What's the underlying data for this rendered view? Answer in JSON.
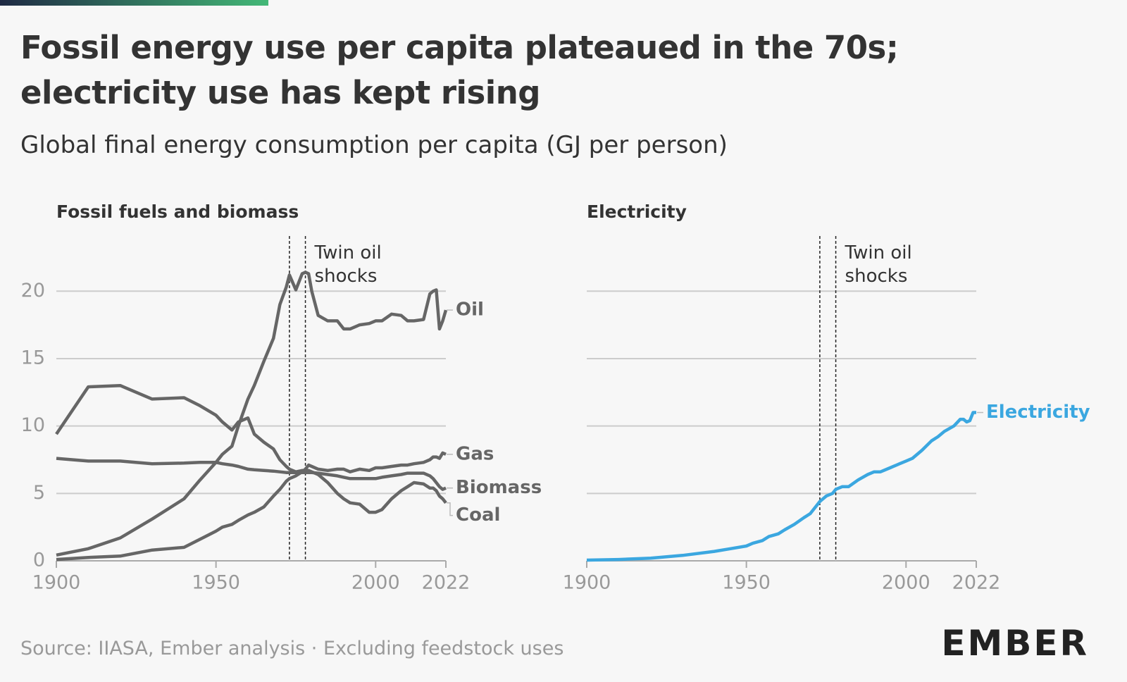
{
  "title": "Fossil energy use per capita plateaued in the 70s; electricity use has kept rising",
  "subtitle": "Global final energy consumption per capita (GJ per person)",
  "source": "Source: IIASA, Ember analysis · Excluding feedstock uses",
  "logo": "EMBER",
  "chart_data": [
    {
      "type": "line",
      "title": "Fossil fuels and biomass",
      "x": [
        1900,
        1910,
        1920,
        1930,
        1940,
        1945,
        1950,
        1952,
        1955,
        1957,
        1960,
        1962,
        1965,
        1968,
        1970,
        1972,
        1973,
        1975,
        1977,
        1978,
        1979,
        1980,
        1982,
        1985,
        1988,
        1990,
        1992,
        1995,
        1998,
        2000,
        2002,
        2005,
        2008,
        2010,
        2012,
        2015,
        2017,
        2018,
        2019,
        2020,
        2021,
        2022
      ],
      "xlim": [
        1900,
        2022
      ],
      "xticks": [
        1900,
        1950,
        2000,
        2022
      ],
      "ylim": [
        0,
        22
      ],
      "yticks": [
        0,
        5,
        10,
        15,
        20
      ],
      "grid": true,
      "annotation": {
        "text": "Twin oil shocks",
        "x": [
          1973,
          1978
        ]
      },
      "series": [
        {
          "name": "Oil",
          "color": "#666666",
          "values": [
            0.43,
            0.9,
            1.7,
            3.1,
            4.6,
            6.0,
            7.3,
            7.9,
            8.5,
            10.0,
            12.0,
            13.0,
            14.8,
            16.5,
            19.0,
            20.3,
            21.2,
            20.1,
            21.3,
            21.4,
            21.3,
            20.0,
            18.2,
            17.8,
            17.8,
            17.2,
            17.2,
            17.5,
            17.6,
            17.8,
            17.8,
            18.3,
            18.2,
            17.8,
            17.8,
            17.9,
            19.8,
            20.0,
            20.1,
            17.2,
            17.8,
            18.6
          ]
        },
        {
          "name": "Gas",
          "color": "#666666",
          "values": [
            0.1,
            0.25,
            0.35,
            0.8,
            1.0,
            1.6,
            2.2,
            2.5,
            2.7,
            3.0,
            3.4,
            3.6,
            4.0,
            4.8,
            5.3,
            5.9,
            6.1,
            6.3,
            6.6,
            6.8,
            7.1,
            7.0,
            6.8,
            6.7,
            6.8,
            6.8,
            6.6,
            6.8,
            6.7,
            6.9,
            6.9,
            7.0,
            7.1,
            7.1,
            7.2,
            7.3,
            7.5,
            7.7,
            7.7,
            7.6,
            8.0,
            7.9
          ]
        },
        {
          "name": "Biomass",
          "color": "#666666",
          "values": [
            7.6,
            7.4,
            7.4,
            7.2,
            7.25,
            7.3,
            7.3,
            7.2,
            7.1,
            7.0,
            6.8,
            6.75,
            6.7,
            6.65,
            6.6,
            6.55,
            6.55,
            6.55,
            6.55,
            6.55,
            6.55,
            6.55,
            6.5,
            6.4,
            6.3,
            6.2,
            6.1,
            6.1,
            6.1,
            6.1,
            6.2,
            6.3,
            6.4,
            6.5,
            6.5,
            6.5,
            6.3,
            6.1,
            5.8,
            5.5,
            5.3,
            5.4
          ]
        },
        {
          "name": "Coal",
          "color": "#666666",
          "values": [
            9.4,
            12.9,
            13.0,
            12.0,
            12.1,
            11.5,
            10.8,
            10.3,
            9.7,
            10.3,
            10.6,
            9.4,
            8.8,
            8.3,
            7.5,
            7.0,
            6.8,
            6.6,
            6.7,
            6.7,
            6.7,
            6.6,
            6.4,
            5.8,
            5.0,
            4.6,
            4.3,
            4.2,
            3.6,
            3.6,
            3.8,
            4.6,
            5.2,
            5.5,
            5.8,
            5.7,
            5.4,
            5.4,
            5.2,
            4.8,
            4.6,
            4.3
          ]
        }
      ]
    },
    {
      "type": "line",
      "title": "Electricity",
      "x": [
        1900,
        1910,
        1920,
        1930,
        1940,
        1945,
        1950,
        1952,
        1955,
        1957,
        1960,
        1962,
        1965,
        1968,
        1970,
        1972,
        1973,
        1975,
        1977,
        1978,
        1979,
        1980,
        1982,
        1985,
        1988,
        1990,
        1992,
        1995,
        1998,
        2000,
        2002,
        2005,
        2008,
        2010,
        2012,
        2015,
        2017,
        2018,
        2019,
        2020,
        2021,
        2022
      ],
      "xlim": [
        1900,
        2022
      ],
      "xticks": [
        1900,
        1950,
        2000,
        2022
      ],
      "ylim": [
        0,
        22
      ],
      "yticks": [
        0,
        5,
        10,
        15,
        20
      ],
      "grid": true,
      "annotation": {
        "text": "Twin oil shocks",
        "x": [
          1973,
          1978
        ]
      },
      "series": [
        {
          "name": "Electricity",
          "color": "#3ba7e0",
          "values": [
            0.05,
            0.1,
            0.2,
            0.4,
            0.7,
            0.9,
            1.1,
            1.3,
            1.5,
            1.8,
            2.0,
            2.3,
            2.7,
            3.2,
            3.5,
            4.1,
            4.4,
            4.8,
            5.0,
            5.3,
            5.4,
            5.5,
            5.5,
            6.0,
            6.4,
            6.6,
            6.6,
            6.9,
            7.2,
            7.4,
            7.6,
            8.2,
            8.9,
            9.2,
            9.6,
            10.0,
            10.5,
            10.5,
            10.3,
            10.4,
            11.0,
            11.0
          ]
        }
      ]
    }
  ]
}
